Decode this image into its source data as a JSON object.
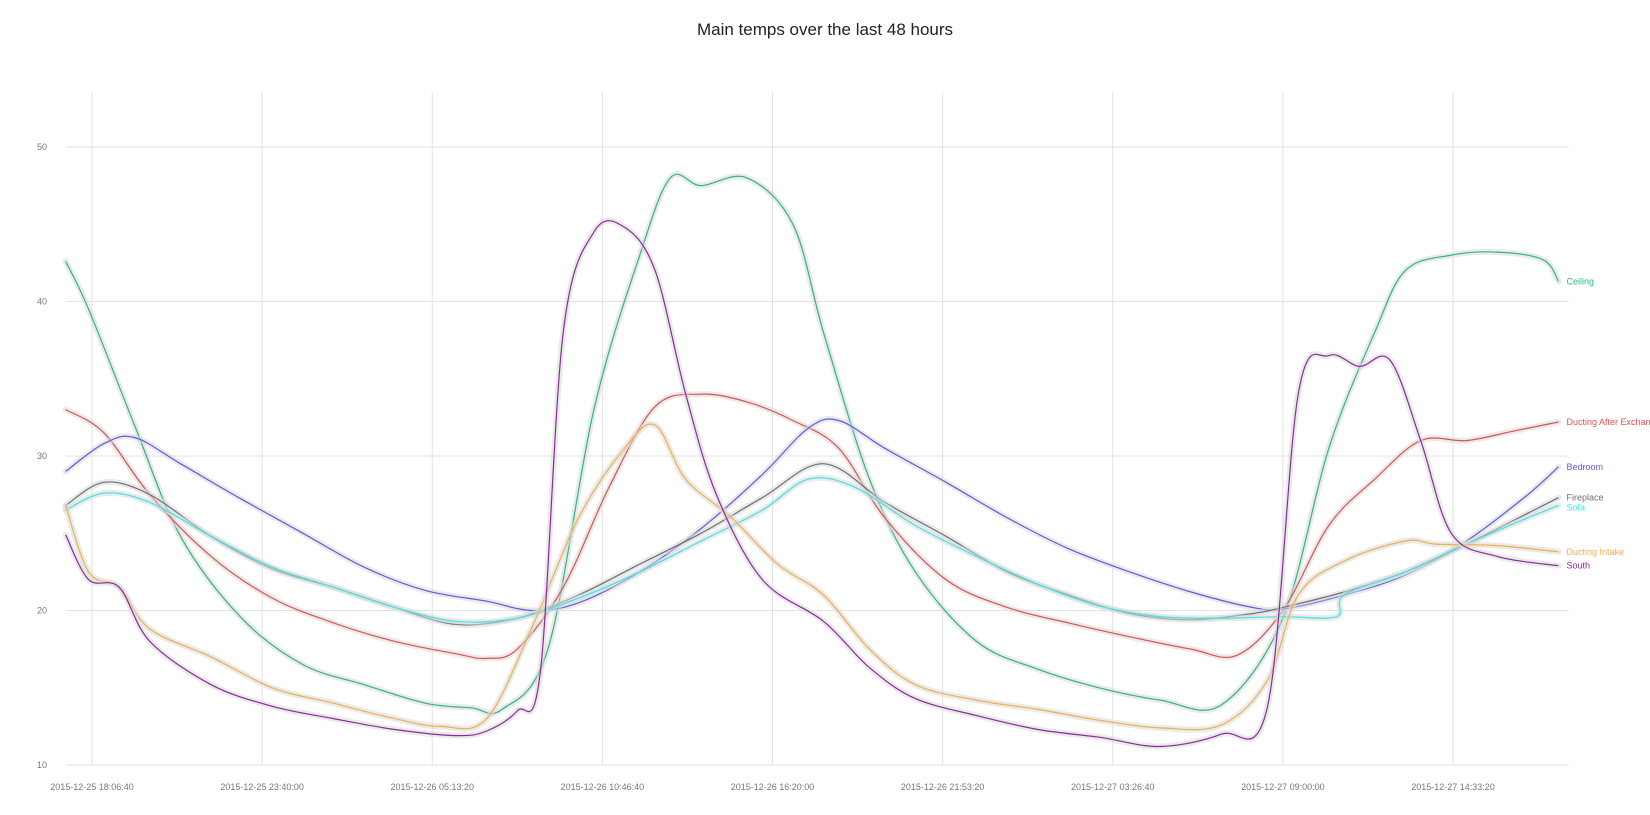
{
  "title": "Main temps over the last 48 hours",
  "chart_data": {
    "type": "line",
    "title": "Main temps over the last 48 hours",
    "x_ticks": [
      "2015-12-25 18:06:40",
      "2015-12-25 23:40:00",
      "2015-12-26 05:13:20",
      "2015-12-26 10:46:40",
      "2015-12-26 16:20:00",
      "2015-12-26 21:53:20",
      "2015-12-27 03:26:40",
      "2015-12-27 09:00:00",
      "2015-12-27 14:33:20"
    ],
    "x_range": [
      "2015-12-25 17:15:00",
      "2015-12-27 18:20:00"
    ],
    "y_ticks": [
      10,
      20,
      30,
      40,
      50
    ],
    "ylim": [
      10,
      50
    ],
    "grid": true,
    "legend": "inline-right-end",
    "series": [
      {
        "name": "Ceiling",
        "color": "#2db58a",
        "x": [
          "2015-12-25 17:15",
          "2015-12-25 18:00",
          "2015-12-25 19:30",
          "2015-12-25 21:00",
          "2015-12-25 23:00",
          "2015-12-26 01:00",
          "2015-12-26 03:00",
          "2015-12-26 05:00",
          "2015-12-26 06:30",
          "2015-12-26 07:30",
          "2015-12-26 09:00",
          "2015-12-26 10:30",
          "2015-12-26 12:00",
          "2015-12-26 13:00",
          "2015-12-26 14:00",
          "2015-12-26 15:30",
          "2015-12-26 17:00",
          "2015-12-26 18:00",
          "2015-12-26 19:30",
          "2015-12-26 21:00",
          "2015-12-26 23:00",
          "2015-12-27 01:00",
          "2015-12-27 03:00",
          "2015-12-27 05:00",
          "2015-12-27 07:00",
          "2015-12-27 09:00",
          "2015-12-27 10:30",
          "2015-12-27 12:00",
          "2015-12-27 13:00",
          "2015-12-27 14:30",
          "2015-12-27 16:00",
          "2015-12-27 17:30",
          "2015-12-27 18:00"
        ],
        "y": [
          42.6,
          39.5,
          32,
          24.8,
          19.5,
          16.5,
          15.2,
          14.0,
          13.7,
          13.6,
          17.5,
          33,
          43,
          48,
          47.5,
          48,
          45,
          38,
          28.5,
          22.5,
          18.0,
          16.2,
          15.0,
          14.2,
          13.9,
          19.5,
          30.5,
          38,
          42,
          43.0,
          43.2,
          42.7,
          41.3
        ]
      },
      {
        "name": "Ducting After Exchange",
        "color": "#e05050",
        "x": [
          "2015-12-25 17:15",
          "2015-12-25 18:30",
          "2015-12-25 20:00",
          "2015-12-25 22:00",
          "2015-12-26 00:00",
          "2015-12-26 02:00",
          "2015-12-26 04:00",
          "2015-12-26 06:00",
          "2015-12-26 07:00",
          "2015-12-26 08:00",
          "2015-12-26 09:30",
          "2015-12-26 11:00",
          "2015-12-26 12:30",
          "2015-12-26 14:00",
          "2015-12-26 15:30",
          "2015-12-26 17:00",
          "2015-12-26 18:30",
          "2015-12-26 20:00",
          "2015-12-26 22:00",
          "2015-12-27 00:00",
          "2015-12-27 02:00",
          "2015-12-27 04:00",
          "2015-12-27 06:00",
          "2015-12-27 07:30",
          "2015-12-27 09:00",
          "2015-12-27 10:30",
          "2015-12-27 12:00",
          "2015-12-27 13:30",
          "2015-12-27 15:00",
          "2015-12-27 16:30",
          "2015-12-27 18:00"
        ],
        "y": [
          33.0,
          31.5,
          27.5,
          23.5,
          20.8,
          19.2,
          18.0,
          17.2,
          16.9,
          17.5,
          21.5,
          28.0,
          33.2,
          34.0,
          33.5,
          32.3,
          30.5,
          26.0,
          22.0,
          20.2,
          19.2,
          18.3,
          17.5,
          17.1,
          20.0,
          25.5,
          28.5,
          31.0,
          31.0,
          31.6,
          32.2
        ]
      },
      {
        "name": "Bedroom",
        "color": "#5c5ce0",
        "x": [
          "2015-12-25 17:15",
          "2015-12-25 18:30",
          "2015-12-25 19:30",
          "2015-12-25 21:00",
          "2015-12-25 23:00",
          "2015-12-26 01:00",
          "2015-12-26 03:00",
          "2015-12-26 05:00",
          "2015-12-26 07:00",
          "2015-12-26 08:30",
          "2015-12-26 10:00",
          "2015-12-26 12:00",
          "2015-12-26 14:00",
          "2015-12-26 16:00",
          "2015-12-26 17:30",
          "2015-12-26 18:30",
          "2015-12-26 20:00",
          "2015-12-26 22:00",
          "2015-12-27 00:00",
          "2015-12-27 02:00",
          "2015-12-27 04:00",
          "2015-12-27 06:00",
          "2015-12-27 08:00",
          "2015-12-27 09:00",
          "2015-12-27 11:00",
          "2015-12-27 13:00",
          "2015-12-27 15:00",
          "2015-12-27 17:00",
          "2015-12-27 18:00"
        ],
        "y": [
          29.0,
          30.8,
          31.2,
          29.5,
          27.2,
          25.0,
          22.8,
          21.3,
          20.6,
          20.0,
          20.5,
          22.5,
          25.3,
          28.8,
          31.8,
          32.3,
          30.5,
          28.3,
          26.0,
          24.0,
          22.5,
          21.2,
          20.2,
          20.1,
          21.0,
          22.3,
          24.5,
          27.5,
          29.3
        ]
      },
      {
        "name": "Fireplace",
        "color": "#707070",
        "x": [
          "2015-12-25 17:15",
          "2015-12-25 18:30",
          "2015-12-25 20:00",
          "2015-12-25 22:00",
          "2015-12-26 00:00",
          "2015-12-26 02:00",
          "2015-12-26 04:00",
          "2015-12-26 06:00",
          "2015-12-26 08:00",
          "2015-12-26 10:00",
          "2015-12-26 12:00",
          "2015-12-26 14:00",
          "2015-12-26 16:00",
          "2015-12-26 18:00",
          "2015-12-26 20:00",
          "2015-12-26 22:00",
          "2015-12-27 00:00",
          "2015-12-27 02:00",
          "2015-12-27 04:00",
          "2015-12-27 06:00",
          "2015-12-27 08:00",
          "2015-12-27 09:00",
          "2015-12-27 11:00",
          "2015-12-27 13:00",
          "2015-12-27 15:00",
          "2015-12-27 17:00",
          "2015-12-27 18:00"
        ],
        "y": [
          26.8,
          28.3,
          27.5,
          24.8,
          22.7,
          21.5,
          20.2,
          19.1,
          19.5,
          21.0,
          23.0,
          25.0,
          27.3,
          29.5,
          27.0,
          24.8,
          22.5,
          21.0,
          19.8,
          19.4,
          19.8,
          20.2,
          21.2,
          22.5,
          24.3,
          26.3,
          27.3
        ]
      },
      {
        "name": "Sofa",
        "color": "#3ee5e5",
        "x": [
          "2015-12-25 17:15",
          "2015-12-25 18:30",
          "2015-12-25 20:00",
          "2015-12-25 22:00",
          "2015-12-26 00:00",
          "2015-12-26 02:00",
          "2015-12-26 04:00",
          "2015-12-26 06:00",
          "2015-12-26 08:00",
          "2015-12-26 10:00",
          "2015-12-26 12:00",
          "2015-12-26 14:00",
          "2015-12-26 16:00",
          "2015-12-26 17:30",
          "2015-12-26 19:00",
          "2015-12-26 21:00",
          "2015-12-26 23:00",
          "2015-12-27 01:00",
          "2015-12-27 03:00",
          "2015-12-27 05:00",
          "2015-12-27 07:00",
          "2015-12-27 09:00",
          "2015-12-27 10:45",
          "2015-12-27 11:00",
          "2015-12-27 13:00",
          "2015-12-27 15:00",
          "2015-12-27 17:00",
          "2015-12-27 18:00"
        ],
        "y": [
          26.5,
          27.6,
          27.0,
          24.8,
          22.8,
          21.5,
          20.2,
          19.3,
          19.5,
          20.8,
          22.5,
          24.5,
          26.5,
          28.5,
          28.0,
          25.5,
          23.5,
          21.7,
          20.3,
          19.6,
          19.5,
          19.6,
          19.6,
          21.0,
          22.5,
          24.3,
          26.0,
          26.8
        ]
      },
      {
        "name": "Ducting Intake",
        "color": "#f0b048",
        "x": [
          "2015-12-25 17:15",
          "2015-12-25 18:00",
          "2015-12-25 19:00",
          "2015-12-25 20:00",
          "2015-12-25 22:00",
          "2015-12-26 00:00",
          "2015-12-26 02:00",
          "2015-12-26 04:00",
          "2015-12-26 05:30",
          "2015-12-26 07:00",
          "2015-12-26 08:30",
          "2015-12-26 10:00",
          "2015-12-26 11:30",
          "2015-12-26 12:30",
          "2015-12-26 13:30",
          "2015-12-26 15:00",
          "2015-12-26 16:30",
          "2015-12-26 18:00",
          "2015-12-26 19:30",
          "2015-12-26 21:00",
          "2015-12-26 23:00",
          "2015-12-27 01:00",
          "2015-12-27 03:00",
          "2015-12-27 05:00",
          "2015-12-27 07:00",
          "2015-12-27 08:30",
          "2015-12-27 09:30",
          "2015-12-27 11:00",
          "2015-12-27 13:00",
          "2015-12-27 14:00",
          "2015-12-27 16:00",
          "2015-12-27 18:00"
        ],
        "y": [
          26.8,
          22.5,
          21.5,
          18.8,
          17.0,
          15.0,
          14.0,
          13.0,
          12.5,
          13.0,
          19.0,
          26.0,
          30.5,
          32.0,
          28.5,
          26.0,
          23.0,
          21.0,
          17.5,
          15.2,
          14.2,
          13.6,
          12.9,
          12.4,
          12.6,
          15.5,
          21.0,
          23.2,
          24.5,
          24.3,
          24.2,
          23.8
        ]
      },
      {
        "name": "South",
        "color": "#8b2a9c",
        "x": [
          "2015-12-25 17:15",
          "2015-12-25 18:00",
          "2015-12-25 19:00",
          "2015-12-25 20:00",
          "2015-12-25 22:00",
          "2015-12-26 00:00",
          "2015-12-26 02:00",
          "2015-12-26 04:00",
          "2015-12-26 06:00",
          "2015-12-26 07:00",
          "2015-12-26 08:00",
          "2015-12-26 08:45",
          "2015-12-26 09:30",
          "2015-12-26 10:30",
          "2015-12-26 11:30",
          "2015-12-26 12:30",
          "2015-12-26 13:30",
          "2015-12-26 14:30",
          "2015-12-26 16:00",
          "2015-12-26 18:00",
          "2015-12-26 19:30",
          "2015-12-26 21:00",
          "2015-12-26 23:00",
          "2015-12-27 01:00",
          "2015-12-27 03:00",
          "2015-12-27 05:00",
          "2015-12-27 07:00",
          "2015-12-27 08:30",
          "2015-12-27 09:30",
          "2015-12-27 10:30",
          "2015-12-27 11:30",
          "2015-12-27 12:30",
          "2015-12-27 13:30",
          "2015-12-27 14:30",
          "2015-12-27 16:00",
          "2015-12-27 18:00"
        ],
        "y": [
          24.9,
          22.0,
          21.5,
          18.0,
          15.2,
          13.8,
          13.0,
          12.3,
          11.9,
          12.2,
          13.5,
          16.0,
          38.0,
          44.5,
          44.8,
          42.0,
          34.0,
          27.5,
          22.0,
          19.3,
          16.3,
          14.3,
          13.2,
          12.3,
          11.8,
          11.2,
          12.0,
          13.8,
          34.0,
          36.5,
          35.8,
          36.2,
          31.0,
          25.0,
          23.5,
          22.9
        ]
      }
    ]
  }
}
